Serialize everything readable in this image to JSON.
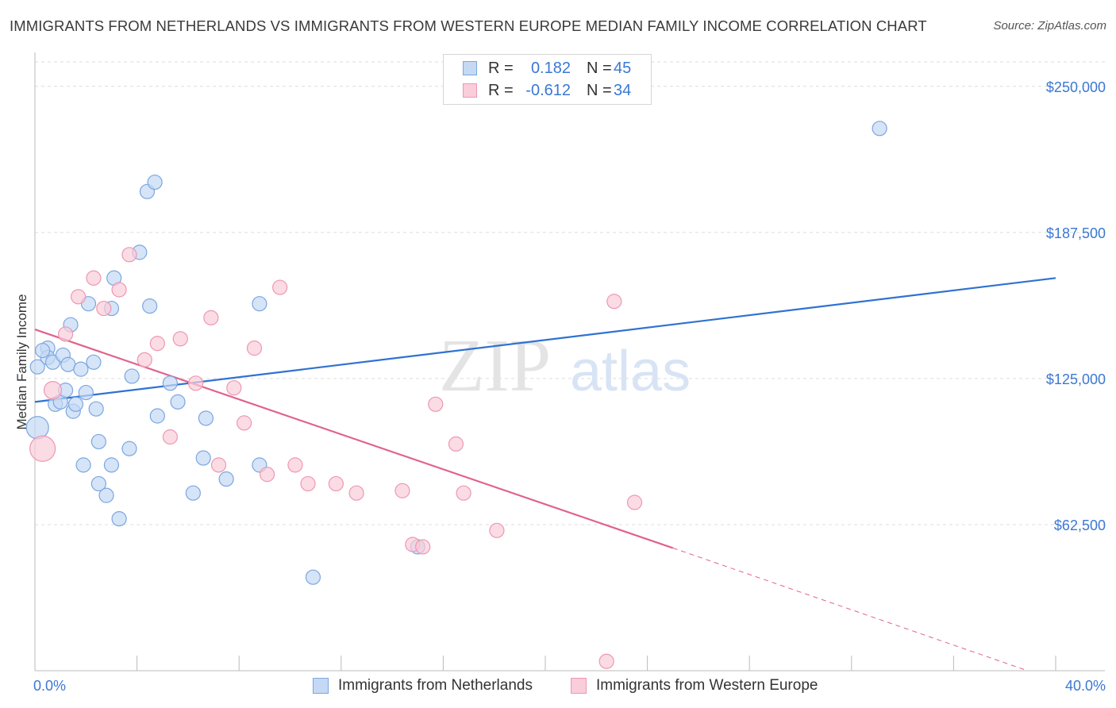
{
  "header": {
    "title": "IMMIGRANTS FROM NETHERLANDS VS IMMIGRANTS FROM WESTERN EUROPE MEDIAN FAMILY INCOME CORRELATION CHART",
    "source": "Source: ZipAtlas.com"
  },
  "legend": {
    "rows": [
      {
        "r_label": "R =",
        "r_value": "0.182",
        "n_label": "N =",
        "n_value": "45"
      },
      {
        "r_label": "R =",
        "r_value": "-0.612",
        "n_label": "N =",
        "n_value": "34"
      }
    ]
  },
  "watermark": {
    "zip": "ZIP",
    "atlas": "atlas"
  },
  "colors": {
    "blue_fill": "#c5d9f5",
    "blue_stroke": "#7aa7e0",
    "blue_line": "#2f72d1",
    "pink_fill": "#f9cdd9",
    "pink_stroke": "#ee97b2",
    "pink_line": "#e0628e",
    "tick_text": "#3a78d4",
    "grid": "#dcdcdc"
  },
  "chart_data": {
    "type": "scatter",
    "xlabel": "",
    "ylabel": "Median Family Income",
    "xlim": [
      0,
      40
    ],
    "ylim": [
      0,
      262500
    ],
    "x_tick_labels": [
      {
        "value": 0,
        "label": "0.0%"
      },
      {
        "value": 40,
        "label": "40.0%"
      }
    ],
    "y_ticks": [
      {
        "value": 62500,
        "label": "$62,500"
      },
      {
        "value": 125000,
        "label": "$125,000"
      },
      {
        "value": 187500,
        "label": "$187,500"
      },
      {
        "value": 250000,
        "label": "$250,000"
      }
    ],
    "grid": true,
    "series": [
      {
        "name": "Immigrants from Netherlands",
        "color_key": "blue",
        "points": [
          [
            0.1,
            104000,
            14
          ],
          [
            0.1,
            130000,
            9
          ],
          [
            0.5,
            138000,
            9
          ],
          [
            0.5,
            134000,
            9
          ],
          [
            0.7,
            132000,
            9
          ],
          [
            0.8,
            114000,
            9
          ],
          [
            1.1,
            135000,
            9
          ],
          [
            1.0,
            115000,
            9
          ],
          [
            1.2,
            120000,
            9
          ],
          [
            1.3,
            131000,
            9
          ],
          [
            1.4,
            148000,
            9
          ],
          [
            1.5,
            111000,
            9
          ],
          [
            1.6,
            114000,
            9
          ],
          [
            1.8,
            129000,
            9
          ],
          [
            1.9,
            88000,
            9
          ],
          [
            2.0,
            119000,
            9
          ],
          [
            2.1,
            157000,
            9
          ],
          [
            2.3,
            132000,
            9
          ],
          [
            2.4,
            112000,
            9
          ],
          [
            2.5,
            98000,
            9
          ],
          [
            2.5,
            80000,
            9
          ],
          [
            2.8,
            75000,
            9
          ],
          [
            3.0,
            155000,
            9
          ],
          [
            3.0,
            88000,
            9
          ],
          [
            3.1,
            168000,
            9
          ],
          [
            3.3,
            65000,
            9
          ],
          [
            3.7,
            95000,
            9
          ],
          [
            3.8,
            126000,
            9
          ],
          [
            4.1,
            179000,
            9
          ],
          [
            4.4,
            205000,
            9
          ],
          [
            4.5,
            156000,
            9
          ],
          [
            4.7,
            209000,
            9
          ],
          [
            4.8,
            109000,
            9
          ],
          [
            5.3,
            123000,
            9
          ],
          [
            5.6,
            115000,
            9
          ],
          [
            6.2,
            76000,
            9
          ],
          [
            6.6,
            91000,
            9
          ],
          [
            6.7,
            108000,
            9
          ],
          [
            7.5,
            82000,
            9
          ],
          [
            8.8,
            157000,
            9
          ],
          [
            8.8,
            88000,
            9
          ],
          [
            10.9,
            40000,
            9
          ],
          [
            15.0,
            53000,
            9
          ],
          [
            33.1,
            232000,
            9
          ],
          [
            0.3,
            137000,
            9
          ]
        ]
      },
      {
        "name": "Immigrants from Western Europe",
        "color_key": "pink",
        "points": [
          [
            0.3,
            95000,
            16
          ],
          [
            0.7,
            120000,
            11
          ],
          [
            1.2,
            144000,
            9
          ],
          [
            1.7,
            160000,
            9
          ],
          [
            2.3,
            168000,
            9
          ],
          [
            2.7,
            155000,
            9
          ],
          [
            3.3,
            163000,
            9
          ],
          [
            3.7,
            178000,
            9
          ],
          [
            4.3,
            133000,
            9
          ],
          [
            4.8,
            140000,
            9
          ],
          [
            5.3,
            100000,
            9
          ],
          [
            5.7,
            142000,
            9
          ],
          [
            6.3,
            123000,
            9
          ],
          [
            6.9,
            151000,
            9
          ],
          [
            7.2,
            88000,
            9
          ],
          [
            7.8,
            121000,
            9
          ],
          [
            8.2,
            106000,
            9
          ],
          [
            8.6,
            138000,
            9
          ],
          [
            9.1,
            84000,
            9
          ],
          [
            9.6,
            164000,
            9
          ],
          [
            10.2,
            88000,
            9
          ],
          [
            10.7,
            80000,
            9
          ],
          [
            11.8,
            80000,
            9
          ],
          [
            12.6,
            76000,
            9
          ],
          [
            14.4,
            77000,
            9
          ],
          [
            14.8,
            54000,
            9
          ],
          [
            15.2,
            53000,
            9
          ],
          [
            15.7,
            114000,
            9
          ],
          [
            16.5,
            97000,
            9
          ],
          [
            16.8,
            76000,
            9
          ],
          [
            18.1,
            60000,
            9
          ],
          [
            22.7,
            158000,
            9
          ],
          [
            23.5,
            72000,
            9
          ],
          [
            22.4,
            4000,
            9
          ]
        ]
      }
    ],
    "trend_lines": [
      {
        "series": "Immigrants from Netherlands",
        "x": [
          0,
          40
        ],
        "y": [
          115000,
          168000
        ],
        "style": "solid"
      },
      {
        "series": "Immigrants from Western Europe",
        "x": [
          0,
          25
        ],
        "y": [
          146000,
          52500
        ],
        "style": "solid"
      },
      {
        "series": "Immigrants from Western Europe",
        "x": [
          25,
          38.9
        ],
        "y": [
          52500,
          0
        ],
        "style": "dashed"
      }
    ]
  }
}
